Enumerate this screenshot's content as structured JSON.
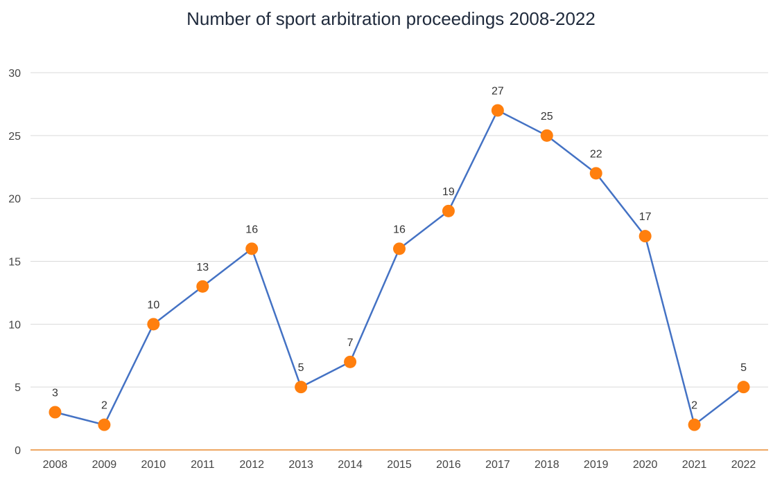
{
  "chart_data": {
    "type": "line",
    "title": "Number of sport arbitration proceedings 2008-2022",
    "xlabel": "",
    "ylabel": "",
    "categories": [
      "2008",
      "2009",
      "2010",
      "2011",
      "2012",
      "2013",
      "2014",
      "2015",
      "2016",
      "2017",
      "2018",
      "2019",
      "2020",
      "2021",
      "2022"
    ],
    "series": [
      {
        "values": [
          3,
          2,
          10,
          13,
          16,
          5,
          7,
          16,
          19,
          27,
          25,
          22,
          17,
          2,
          5
        ]
      }
    ],
    "ylim": [
      0,
      30
    ],
    "yticks": [
      0,
      5,
      10,
      15,
      20,
      25,
      30
    ],
    "grid": true,
    "legend": "none",
    "data_labels": true,
    "colors": {
      "line": "#4472C4",
      "marker": "#FF7F0E",
      "grid": "#d9d9d9",
      "baseline": "#E8892E"
    }
  }
}
